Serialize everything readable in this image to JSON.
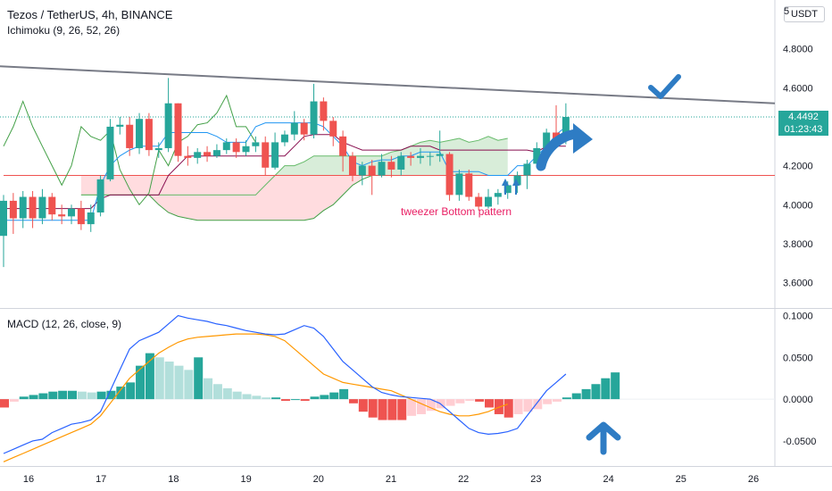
{
  "header": {
    "symbol_line": "Tezos / TetherUS, 4h, BINANCE",
    "indicator_line": "Ichimoku (9, 26, 52, 26)",
    "macd_line": "MACD (12, 26, close, 9)",
    "currency_button": "USDT",
    "top_right_digit": "5"
  },
  "price_badge": {
    "price": "4.4492",
    "countdown": "01:23:43",
    "color": "#26a69a"
  },
  "annotation": {
    "text": "tweezer Bottom pattern",
    "color": "#e91e63"
  },
  "colors": {
    "up": "#26a69a",
    "down": "#ef5350",
    "tenkan": "#2196f3",
    "kijun": "#880e4f",
    "lagging": "#43a047",
    "spanA": "#66bb6a",
    "spanB": "#ef5350",
    "cloud_bull": "#c8e6c9",
    "cloud_bear": "#ffcdd2",
    "macd": "#2962ff",
    "signal": "#ff9800",
    "hist_up_strong": "#26a69a",
    "hist_up_weak": "#b2dfdb",
    "hist_dn_strong": "#ef5350",
    "hist_dn_weak": "#ffcdd2",
    "trendline": "#787b86",
    "arrow": "#2e7cc4"
  },
  "icons": [
    "check-mark-icon",
    "curved-arrow-icon",
    "up-arrow-icon",
    "small-up-arrow-icon"
  ],
  "chart_data": [
    {
      "type": "candlestick",
      "title": "Tezos / TetherUS, 4h, BINANCE",
      "x_ticks": [
        "16",
        "17",
        "18",
        "19",
        "20",
        "21",
        "22",
        "23",
        "24",
        "25",
        "26"
      ],
      "y_ticks": [
        "3.6000",
        "3.8000",
        "4.0000",
        "4.2000",
        "4.4000",
        "4.6000",
        "4.8000"
      ],
      "ylim": [
        3.47,
        5.05
      ],
      "candles": [
        [
          3.84,
          4.02,
          3.68,
          4.05
        ],
        [
          4.02,
          3.93,
          3.85,
          4.06
        ],
        [
          3.93,
          4.04,
          3.88,
          4.07
        ],
        [
          4.04,
          3.93,
          3.88,
          4.07
        ],
        [
          3.93,
          4.04,
          3.9,
          4.08
        ],
        [
          4.04,
          3.95,
          3.92,
          4.06
        ],
        [
          3.95,
          3.94,
          3.9,
          4.0
        ],
        [
          3.94,
          3.98,
          3.9,
          4.0
        ],
        [
          3.98,
          3.9,
          3.87,
          4.02
        ],
        [
          3.9,
          3.96,
          3.86,
          4.0
        ],
        [
          3.96,
          4.13,
          3.94,
          4.15
        ],
        [
          4.13,
          4.4,
          4.12,
          4.44
        ],
        [
          4.4,
          4.41,
          4.36,
          4.45
        ],
        [
          4.41,
          4.29,
          4.25,
          4.45
        ],
        [
          4.29,
          4.44,
          4.26,
          4.47
        ],
        [
          4.44,
          4.28,
          4.25,
          4.47
        ],
        [
          4.28,
          4.29,
          4.24,
          4.32
        ],
        [
          4.29,
          4.52,
          4.27,
          4.65
        ],
        [
          4.52,
          4.25,
          4.22,
          4.52
        ],
        [
          4.25,
          4.24,
          4.2,
          4.3
        ],
        [
          4.24,
          4.27,
          4.21,
          4.29
        ],
        [
          4.27,
          4.25,
          4.22,
          4.3
        ],
        [
          4.25,
          4.28,
          4.24,
          4.31
        ],
        [
          4.28,
          4.32,
          4.26,
          4.34
        ],
        [
          4.32,
          4.27,
          4.24,
          4.34
        ],
        [
          4.27,
          4.3,
          4.25,
          4.33
        ],
        [
          4.3,
          4.32,
          4.27,
          4.35
        ],
        [
          4.32,
          4.19,
          4.15,
          4.35
        ],
        [
          4.19,
          4.32,
          4.18,
          4.37
        ],
        [
          4.32,
          4.36,
          4.3,
          4.38
        ],
        [
          4.36,
          4.42,
          4.33,
          4.48
        ],
        [
          4.42,
          4.36,
          4.33,
          4.44
        ],
        [
          4.36,
          4.53,
          4.34,
          4.62
        ],
        [
          4.53,
          4.43,
          4.38,
          4.55
        ],
        [
          4.43,
          4.35,
          4.3,
          4.45
        ],
        [
          4.35,
          4.25,
          4.17,
          4.38
        ],
        [
          4.25,
          4.15,
          4.12,
          4.27
        ],
        [
          4.15,
          4.2,
          4.1,
          4.22
        ],
        [
          4.2,
          4.15,
          4.05,
          4.23
        ],
        [
          4.15,
          4.22,
          4.14,
          4.26
        ],
        [
          4.22,
          4.18,
          4.14,
          4.25
        ],
        [
          4.18,
          4.25,
          4.15,
          4.27
        ],
        [
          4.25,
          4.24,
          4.2,
          4.27
        ],
        [
          4.24,
          4.25,
          4.21,
          4.29
        ],
        [
          4.25,
          4.25,
          4.2,
          4.27
        ],
        [
          4.25,
          4.26,
          4.22,
          4.38
        ],
        [
          4.26,
          4.05,
          4.02,
          4.27
        ],
        [
          4.05,
          4.16,
          4.02,
          4.18
        ],
        [
          4.16,
          4.04,
          4.02,
          4.18
        ],
        [
          4.04,
          3.99,
          3.97,
          4.06
        ],
        [
          3.99,
          4.04,
          3.98,
          4.08
        ],
        [
          4.04,
          4.06,
          4.0,
          4.08
        ],
        [
          4.06,
          4.1,
          4.03,
          4.12
        ],
        [
          4.1,
          4.15,
          4.06,
          4.17
        ],
        [
          4.15,
          4.21,
          4.08,
          4.23
        ],
        [
          4.21,
          4.29,
          4.19,
          4.32
        ],
        [
          4.29,
          4.37,
          4.25,
          4.39
        ],
        [
          4.37,
          4.34,
          4.32,
          4.51
        ],
        [
          4.34,
          4.45,
          4.31,
          4.52
        ]
      ],
      "tenkan": [
        3.92,
        3.92,
        3.92,
        3.92,
        3.92,
        3.92,
        3.92,
        3.92,
        3.92,
        3.92,
        4.1,
        4.2,
        4.25,
        4.28,
        4.3,
        4.3,
        4.3,
        4.37,
        4.37,
        4.37,
        4.37,
        4.37,
        4.35,
        4.32,
        4.32,
        4.32,
        4.4,
        4.42,
        4.42,
        4.42,
        4.42,
        4.42,
        4.42,
        4.4,
        4.35,
        4.3,
        4.22,
        4.2,
        4.22,
        4.23,
        4.23,
        4.25,
        4.25,
        4.27,
        4.27,
        4.27,
        4.17,
        4.17,
        4.17,
        4.17,
        4.15,
        4.15,
        4.15,
        4.2,
        4.2,
        4.25,
        4.3,
        4.36,
        4.4
      ],
      "kijun": [
        3.98,
        3.98,
        3.98,
        3.98,
        3.98,
        3.98,
        3.98,
        3.98,
        3.98,
        3.98,
        4.03,
        4.05,
        4.05,
        4.05,
        4.05,
        4.05,
        4.05,
        4.15,
        4.2,
        4.25,
        4.25,
        4.25,
        4.25,
        4.25,
        4.25,
        4.25,
        4.25,
        4.25,
        4.25,
        4.25,
        4.3,
        4.35,
        4.36,
        4.36,
        4.36,
        4.32,
        4.3,
        4.28,
        4.28,
        4.28,
        4.28,
        4.28,
        4.3,
        4.3,
        4.3,
        4.28,
        4.28,
        4.28,
        4.28,
        4.28,
        4.28,
        4.28,
        4.28,
        4.28,
        4.28,
        4.27,
        4.3,
        4.3,
        4.3
      ],
      "lagging": [
        4.3,
        4.4,
        4.53,
        4.4,
        4.3,
        4.2,
        4.1,
        4.2,
        4.4,
        4.35,
        4.33,
        4.38,
        4.18,
        4.08,
        4.0,
        4.06,
        4.28,
        4.2,
        4.32,
        4.35,
        4.41,
        4.42,
        4.47,
        4.56,
        4.4,
        4.4,
        4.32
      ],
      "spanA_shift": 26,
      "spanA": [
        4.05,
        4.05,
        4.05,
        4.05,
        4.05,
        4.05,
        4.05,
        4.05,
        4.05,
        4.05,
        4.05,
        4.05,
        4.05,
        4.05,
        4.05,
        4.05,
        4.05,
        4.05,
        4.05,
        4.1,
        4.15,
        4.2,
        4.2,
        4.22,
        4.25,
        4.25,
        4.25,
        4.25,
        4.25,
        4.25,
        4.25,
        4.25,
        4.27,
        4.28,
        4.3,
        4.32,
        4.33,
        4.32,
        4.33,
        4.34,
        4.32,
        4.33,
        4.35,
        4.33,
        4.34
      ],
      "spanB": [
        4.15,
        4.15,
        4.15,
        4.15,
        4.15,
        4.15,
        4.15,
        4.15,
        4.15,
        4.15,
        4.15,
        4.15,
        4.15,
        4.15,
        4.15,
        4.15,
        4.15,
        4.15,
        4.15,
        4.15,
        4.15,
        4.15,
        4.15,
        4.15,
        4.15,
        4.15,
        4.15,
        4.15,
        4.15,
        4.15,
        4.15,
        4.15,
        4.15,
        4.15,
        4.15,
        4.15,
        4.15,
        4.15,
        4.15,
        4.15,
        4.15,
        4.15,
        4.15,
        4.15,
        4.15
      ],
      "cloud_low": [
        4.05,
        4.05,
        4.05,
        4.05,
        4.05,
        4.05,
        4.05,
        4.05,
        4.0,
        3.96,
        3.94,
        3.93,
        3.92,
        3.92,
        3.92,
        3.92,
        3.92,
        3.92,
        3.92,
        3.92,
        3.92,
        3.92,
        3.92,
        3.92,
        3.93,
        3.97,
        4.0,
        4.05,
        4.1,
        4.13,
        4.15,
        4.15,
        4.15,
        4.15,
        4.15,
        4.15,
        4.15,
        4.15,
        4.15,
        4.15,
        4.15,
        4.15,
        4.15,
        4.15,
        4.15
      ],
      "trendline": {
        "x": [
          0,
          868
        ],
        "y": [
          4.71,
          4.52
        ]
      }
    },
    {
      "type": "macd",
      "title": "MACD (12, 26, close, 9)",
      "y_ticks": [
        "-0.0500",
        "0.0000",
        "0.0500",
        "0.1000"
      ],
      "ylim": [
        -0.08,
        0.108
      ],
      "histogram": [
        -0.01,
        -0.003,
        0.003,
        0.005,
        0.007,
        0.009,
        0.01,
        0.01,
        0.009,
        0.008,
        0.009,
        0.01,
        0.015,
        0.02,
        0.04,
        0.055,
        0.05,
        0.045,
        0.04,
        0.035,
        0.05,
        0.025,
        0.018,
        0.013,
        0.009,
        0.006,
        0.004,
        0.002,
        0.002,
        -0.002,
        0.0,
        -0.002,
        0.003,
        0.005,
        0.008,
        0.012,
        -0.005,
        -0.015,
        -0.022,
        -0.025,
        -0.025,
        -0.025,
        -0.02,
        -0.018,
        -0.014,
        -0.011,
        -0.008,
        -0.005,
        -0.002,
        -0.003,
        -0.01,
        -0.018,
        -0.022,
        -0.018,
        -0.015,
        -0.012,
        -0.006,
        -0.003,
        0.002,
        0.007,
        0.012,
        0.018,
        0.025,
        0.032
      ],
      "macd": [
        -0.065,
        -0.06,
        -0.055,
        -0.05,
        -0.048,
        -0.04,
        -0.035,
        -0.03,
        -0.028,
        -0.025,
        -0.015,
        0.01,
        0.035,
        0.06,
        0.07,
        0.075,
        0.08,
        0.09,
        0.1,
        0.097,
        0.095,
        0.093,
        0.09,
        0.088,
        0.085,
        0.082,
        0.08,
        0.078,
        0.077,
        0.078,
        0.083,
        0.088,
        0.085,
        0.075,
        0.06,
        0.045,
        0.035,
        0.025,
        0.015,
        0.008,
        0.005,
        0.003,
        0.002,
        0.001,
        0.0,
        -0.005,
        -0.015,
        -0.025,
        -0.035,
        -0.04,
        -0.042,
        -0.041,
        -0.039,
        -0.035,
        -0.02,
        -0.005,
        0.01,
        0.02,
        0.03
      ],
      "signal": [
        -0.075,
        -0.07,
        -0.065,
        -0.06,
        -0.055,
        -0.05,
        -0.045,
        -0.04,
        -0.035,
        -0.03,
        -0.02,
        -0.005,
        0.01,
        0.025,
        0.035,
        0.045,
        0.055,
        0.062,
        0.068,
        0.072,
        0.074,
        0.075,
        0.076,
        0.077,
        0.078,
        0.078,
        0.078,
        0.077,
        0.075,
        0.07,
        0.06,
        0.05,
        0.04,
        0.03,
        0.025,
        0.02,
        0.018,
        0.016,
        0.014,
        0.012,
        0.01,
        0.005,
        0.0,
        -0.005,
        -0.01,
        -0.015,
        -0.018,
        -0.02,
        -0.02,
        -0.018,
        -0.015,
        -0.01,
        -0.006
      ]
    }
  ]
}
